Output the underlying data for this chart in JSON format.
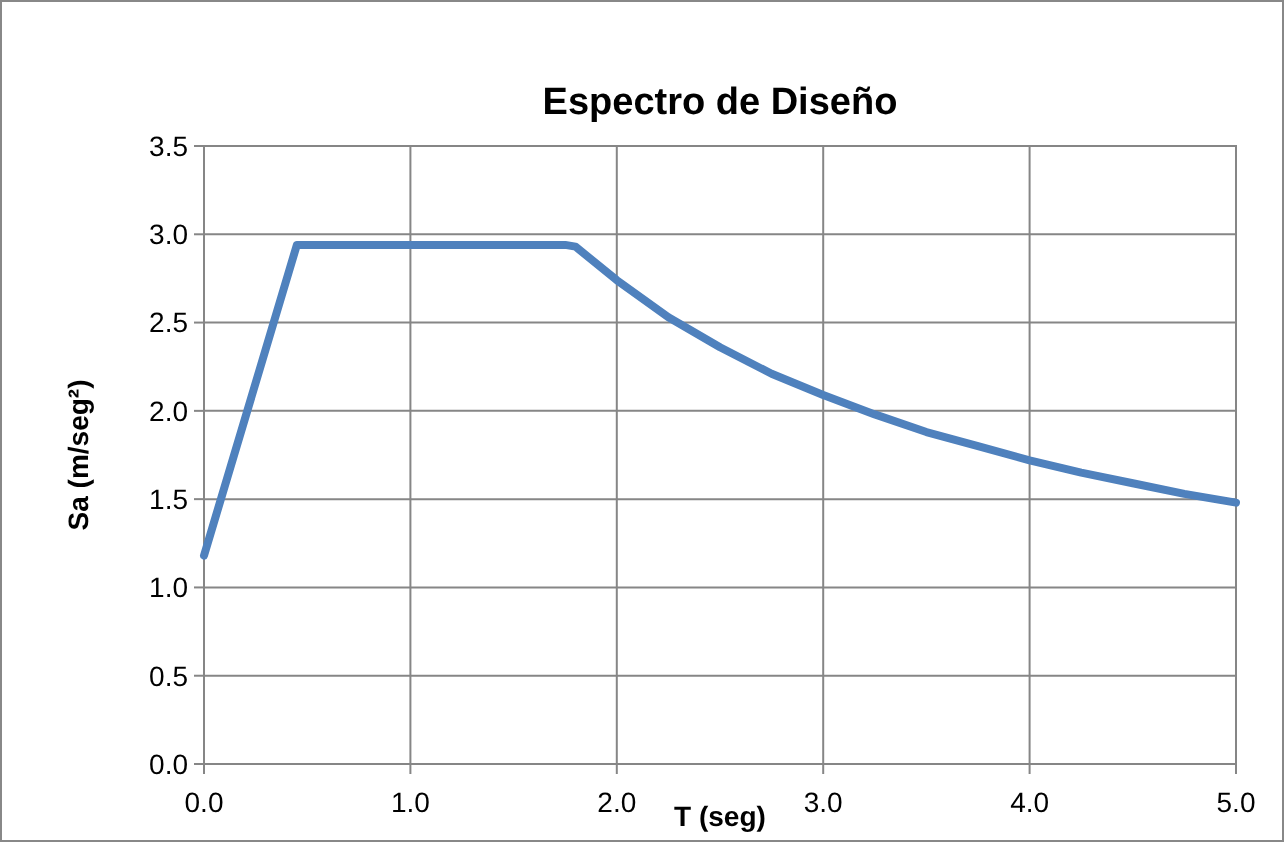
{
  "chart_data": {
    "type": "line",
    "title": "Espectro de Diseño",
    "xlabel": "T (seg)",
    "ylabel": "Sa (m/seg²)",
    "x": [
      0,
      0.45,
      0.6,
      0.8,
      1.0,
      1.2,
      1.4,
      1.6,
      1.75,
      1.8,
      2.0,
      2.25,
      2.5,
      2.75,
      3.0,
      3.25,
      3.5,
      3.75,
      4.0,
      4.25,
      4.5,
      4.75,
      5.0
    ],
    "series": [
      {
        "color": "#4f81bd",
        "values": [
          1.18,
          2.94,
          2.94,
          2.94,
          2.94,
          2.94,
          2.94,
          2.94,
          2.94,
          2.93,
          2.74,
          2.53,
          2.36,
          2.21,
          2.09,
          1.98,
          1.88,
          1.8,
          1.72,
          1.65,
          1.59,
          1.53,
          1.48
        ]
      }
    ],
    "xlim": [
      0,
      5
    ],
    "xticks": [
      {
        "value": 0,
        "label": "0.0"
      },
      {
        "value": 1,
        "label": "1.0"
      },
      {
        "value": 2,
        "label": "2.0"
      },
      {
        "value": 3,
        "label": "3.0"
      },
      {
        "value": 4,
        "label": "4.0"
      },
      {
        "value": 5,
        "label": "5.0"
      }
    ],
    "ylim": [
      0,
      3.5
    ],
    "yticks": [
      {
        "value": 0,
        "label": "0.0"
      },
      {
        "value": 0.5,
        "label": "0.5"
      },
      {
        "value": 1,
        "label": "1.0"
      },
      {
        "value": 1.5,
        "label": "1.5"
      },
      {
        "value": 2,
        "label": "2.0"
      },
      {
        "value": 2.5,
        "label": "2.5"
      },
      {
        "value": 3,
        "label": "3.0"
      },
      {
        "value": 3.5,
        "label": "3.5"
      }
    ],
    "grid": true,
    "marker": "none",
    "line_style": "solid"
  }
}
